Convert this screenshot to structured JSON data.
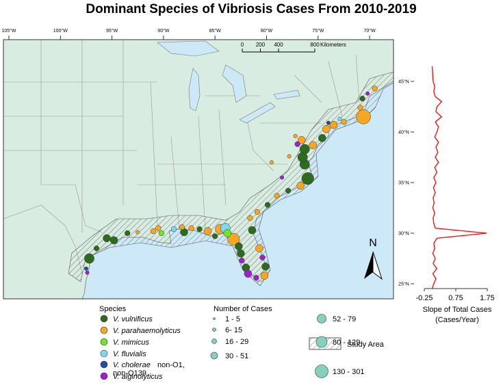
{
  "title": "Dominant Species of Vibriosis Cases From 2010-2019",
  "map": {
    "xticks": [
      {
        "value": -105,
        "label": "105°W"
      },
      {
        "value": -100,
        "label": "100°W"
      },
      {
        "value": -95,
        "label": "95°W"
      },
      {
        "value": -90,
        "label": "90°W"
      },
      {
        "value": -85,
        "label": "85°W"
      },
      {
        "value": -80,
        "label": "80°W"
      },
      {
        "value": -75,
        "label": "75°W"
      },
      {
        "value": -70,
        "label": "70°W"
      }
    ],
    "scale_bar": {
      "ticks": [
        0,
        200,
        400,
        800
      ],
      "unit": "Kilometers"
    },
    "north": "N",
    "sites": [
      {
        "lon": -97.2,
        "lat": 27.5,
        "species": "V. vulnificus",
        "cases": "52 - 79"
      },
      {
        "lon": -95.5,
        "lat": 29.5,
        "species": "V. vulnificus",
        "cases": "30 - 51"
      },
      {
        "lon": -94.8,
        "lat": 29.3,
        "species": "V. vulnificus",
        "cases": "30 - 51"
      },
      {
        "lon": -96.5,
        "lat": 28.5,
        "species": "V. vulnificus",
        "cases": "16 - 29"
      },
      {
        "lon": -97.5,
        "lat": 26.5,
        "species": "V. cholerae",
        "cases": "6- 15"
      },
      {
        "lon": -97.4,
        "lat": 26.1,
        "species": "V. alginolyticus",
        "cases": "6- 15"
      },
      {
        "lon": -93.5,
        "lat": 30.0,
        "species": "V. vulnificus",
        "cases": "16 - 29"
      },
      {
        "lon": -92.5,
        "lat": 30.1,
        "species": "V. parahaemolyticus",
        "cases": "6- 15"
      },
      {
        "lon": -91.0,
        "lat": 30.2,
        "species": "V. parahaemolyticus",
        "cases": "16 - 29"
      },
      {
        "lon": -90.2,
        "lat": 30.0,
        "species": "V. mimicus",
        "cases": "16 - 29"
      },
      {
        "lon": -90.5,
        "lat": 30.5,
        "species": "V. parahaemolyticus",
        "cases": "16 - 29"
      },
      {
        "lon": -89.0,
        "lat": 30.4,
        "species": "V. fluvialis",
        "cases": "16 - 29"
      },
      {
        "lon": -88.2,
        "lat": 30.6,
        "species": "V. parahaemolyticus",
        "cases": "16 - 29"
      },
      {
        "lon": -88.0,
        "lat": 30.1,
        "species": "V. vulnificus",
        "cases": "30 - 51"
      },
      {
        "lon": -87.3,
        "lat": 30.5,
        "species": "V. parahaemolyticus",
        "cases": "16 - 29"
      },
      {
        "lon": -86.5,
        "lat": 30.4,
        "species": "V. vulnificus",
        "cases": "16 - 29"
      },
      {
        "lon": -85.7,
        "lat": 30.2,
        "species": "V. parahaemolyticus",
        "cases": "30 - 51"
      },
      {
        "lon": -85.0,
        "lat": 29.7,
        "species": "V. vulnificus",
        "cases": "16 - 29"
      },
      {
        "lon": -84.5,
        "lat": 30.4,
        "species": "V. parahaemolyticus",
        "cases": "52 - 79"
      },
      {
        "lon": -84.0,
        "lat": 30.5,
        "species": "V. fluvialis",
        "cases": "52 - 79"
      },
      {
        "lon": -83.8,
        "lat": 30.0,
        "species": "V. mimicus",
        "cases": "30 - 51"
      },
      {
        "lon": -83.2,
        "lat": 29.4,
        "species": "V. parahaemolyticus",
        "cases": "80 - 129"
      },
      {
        "lon": -82.7,
        "lat": 28.7,
        "species": "V. vulnificus",
        "cases": "30 - 51"
      },
      {
        "lon": -82.5,
        "lat": 28.0,
        "species": "V. vulnificus",
        "cases": "30 - 51"
      },
      {
        "lon": -82.4,
        "lat": 27.3,
        "species": "V. alginolyticus",
        "cases": "16 - 29"
      },
      {
        "lon": -82.0,
        "lat": 26.6,
        "species": "V. vulnificus",
        "cases": "30 - 51"
      },
      {
        "lon": -81.8,
        "lat": 26.0,
        "species": "V. alginolyticus",
        "cases": "30 - 51"
      },
      {
        "lon": -81.0,
        "lat": 25.6,
        "species": "V. alginolyticus",
        "cases": "16 - 29"
      },
      {
        "lon": -80.2,
        "lat": 25.8,
        "species": "V. parahaemolyticus",
        "cases": "30 - 51"
      },
      {
        "lon": -80.1,
        "lat": 26.7,
        "species": "V. vulnificus",
        "cases": "30 - 51"
      },
      {
        "lon": -80.4,
        "lat": 27.6,
        "species": "V. alginolyticus",
        "cases": "16 - 29"
      },
      {
        "lon": -80.7,
        "lat": 28.5,
        "species": "V. parahaemolyticus",
        "cases": "30 - 51"
      },
      {
        "lon": -81.4,
        "lat": 30.3,
        "species": "V. vulnificus",
        "cases": "30 - 51"
      },
      {
        "lon": -81.6,
        "lat": 31.5,
        "species": "V. parahaemolyticus",
        "cases": "16 - 29"
      },
      {
        "lon": -80.9,
        "lat": 32.1,
        "species": "V. parahaemolyticus",
        "cases": "16 - 29"
      },
      {
        "lon": -79.9,
        "lat": 32.8,
        "species": "V. vulnificus",
        "cases": "16 - 29"
      },
      {
        "lon": -79.0,
        "lat": 33.7,
        "species": "V. parahaemolyticus",
        "cases": "16 - 29"
      },
      {
        "lon": -77.9,
        "lat": 34.2,
        "species": "V. vulnificus",
        "cases": "16 - 29"
      },
      {
        "lon": -76.7,
        "lat": 34.7,
        "species": "V. parahaemolyticus",
        "cases": "30 - 51"
      },
      {
        "lon": -76.0,
        "lat": 35.4,
        "species": "V. vulnificus",
        "cases": "80 - 129"
      },
      {
        "lon": -76.3,
        "lat": 36.8,
        "species": "V. vulnificus",
        "cases": "52 - 79"
      },
      {
        "lon": -76.5,
        "lat": 37.5,
        "species": "V. vulnificus",
        "cases": "52 - 79"
      },
      {
        "lon": -76.3,
        "lat": 38.3,
        "species": "V. vulnificus",
        "cases": "52 - 79"
      },
      {
        "lon": -76.6,
        "lat": 39.2,
        "species": "V. parahaemolyticus",
        "cases": "30 - 51"
      },
      {
        "lon": -75.5,
        "lat": 38.7,
        "species": "V. parahaemolyticus",
        "cases": "30 - 51"
      },
      {
        "lon": -74.6,
        "lat": 39.4,
        "species": "V. vulnificus",
        "cases": "30 - 51"
      },
      {
        "lon": -74.2,
        "lat": 40.3,
        "species": "V. parahaemolyticus",
        "cases": "30 - 51"
      },
      {
        "lon": -73.5,
        "lat": 40.7,
        "species": "V. parahaemolyticus",
        "cases": "30 - 51"
      },
      {
        "lon": -72.5,
        "lat": 41.0,
        "species": "V. parahaemolyticus",
        "cases": "16 - 29"
      },
      {
        "lon": -70.6,
        "lat": 41.5,
        "species": "V. parahaemolyticus",
        "cases": "130 - 301"
      },
      {
        "lon": -70.9,
        "lat": 42.4,
        "species": "V. parahaemolyticus",
        "cases": "16 - 29"
      },
      {
        "lon": -70.7,
        "lat": 43.3,
        "species": "V. vulnificus",
        "cases": "16 - 29"
      },
      {
        "lon": -69.5,
        "lat": 44.3,
        "species": "V. parahaemolyticus",
        "cases": "16 - 29"
      },
      {
        "lon": -70.2,
        "lat": 43.8,
        "species": "V. alginolyticus",
        "cases": "6- 15"
      },
      {
        "lon": -72.9,
        "lat": 41.3,
        "species": "V. fluvialis",
        "cases": "6- 15"
      },
      {
        "lon": -74.0,
        "lat": 40.9,
        "species": "V. cholerae",
        "cases": "6- 15"
      },
      {
        "lon": -77.0,
        "lat": 38.8,
        "species": "V. alginolyticus",
        "cases": "16 - 29"
      },
      {
        "lon": -77.8,
        "lat": 37.6,
        "species": "V. parahaemolyticus",
        "cases": "6- 15"
      },
      {
        "lon": -78.5,
        "lat": 35.5,
        "species": "V. alginolyticus",
        "cases": "6- 15"
      },
      {
        "lon": -79.5,
        "lat": 37.0,
        "species": "V. parahaemolyticus",
        "cases": "6- 15"
      },
      {
        "lon": -77.2,
        "lat": 39.6,
        "species": "V. parahaemolyticus",
        "cases": "6- 15"
      }
    ]
  },
  "legend": {
    "species_title": "Species",
    "species": [
      {
        "italic": "V. vulnificus",
        "color": "#2e6b1f"
      },
      {
        "italic": "V. parahaemolyticus",
        "color": "#f5a623"
      },
      {
        "italic": "V. mimicus",
        "color": "#6ee62e"
      },
      {
        "italic": "V. fluvialis",
        "color": "#7fd8f0"
      },
      {
        "italic": "V. cholerae",
        "rest": "non-O1, non-O139",
        "color": "#1f4fa3"
      },
      {
        "italic": "V. alginolyticus",
        "color": "#a020d0"
      }
    ],
    "cases_title": "Number of Cases",
    "cases": [
      "1 - 5",
      "6- 15",
      "16 - 29",
      "30 - 51",
      "52 - 79",
      "80 - 129",
      "130 - 301"
    ],
    "study_area": "Study Area"
  },
  "chart_data": {
    "type": "line",
    "color": "#ff0000",
    "xlim": [
      -0.25,
      1.75
    ],
    "xticks": [
      -0.25,
      0.75,
      1.75
    ],
    "ylim": [
      24.8,
      46.6
    ],
    "yticks": [
      {
        "value": 45,
        "label": "45°N"
      },
      {
        "value": 40,
        "label": "40°N"
      },
      {
        "value": 35,
        "label": "35°N"
      },
      {
        "value": 30,
        "label": "30°N"
      },
      {
        "value": 25,
        "label": "25°N"
      }
    ],
    "xlabel": [
      "Slope of Total Cases",
      "(Cases/Year)"
    ],
    "y": [
      24.5,
      25,
      25.5,
      26,
      26.5,
      27,
      27.5,
      28,
      28.5,
      29,
      29.5,
      30,
      30.5,
      31,
      31.5,
      32,
      32.5,
      33,
      33.5,
      34,
      34.5,
      35,
      35.5,
      36,
      36.5,
      37,
      37.5,
      38,
      38.5,
      39,
      39.5,
      40,
      40.5,
      41,
      41.5,
      42,
      42.5,
      43,
      43.5,
      44,
      44.5,
      45,
      45.5,
      46,
      46.5
    ],
    "values": [
      0.0,
      0.05,
      0.12,
      0.02,
      0.15,
      0.03,
      0.1,
      0.02,
      0.08,
      0.05,
      0.15,
      1.73,
      0.1,
      0.05,
      0.03,
      0.08,
      0.02,
      0.06,
      0.03,
      0.1,
      0.04,
      0.12,
      0.05,
      0.15,
      0.08,
      0.2,
      0.1,
      0.18,
      0.12,
      0.2,
      0.08,
      0.15,
      0.2,
      0.1,
      0.3,
      0.12,
      0.15,
      0.3,
      0.1,
      0.05,
      0.08,
      0.03,
      0.02,
      0.01,
      0.0
    ]
  }
}
